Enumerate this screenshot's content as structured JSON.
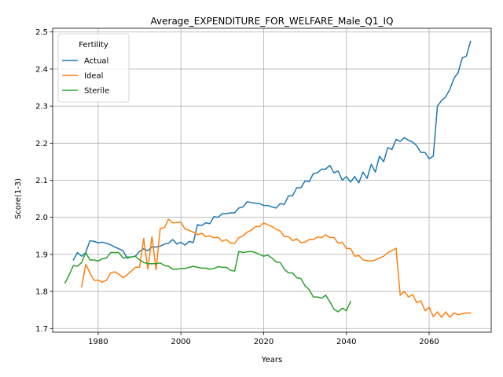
{
  "chart_data": {
    "type": "line",
    "title": "Average_EXPENDITURE_FOR_WELFARE_Male_Q1_IQ",
    "xlabel": "Years",
    "ylabel": "Score(1-3)",
    "xlim": [
      1969,
      2075
    ],
    "ylim": [
      1.69,
      2.51
    ],
    "xticks": [
      1980,
      2000,
      2020,
      2040,
      2060
    ],
    "yticks": [
      1.7,
      1.8,
      1.9,
      2.0,
      2.1,
      2.2,
      2.3,
      2.4,
      2.5
    ],
    "xtick_labels": [
      "1980",
      "2000",
      "2020",
      "2040",
      "2060"
    ],
    "ytick_labels": [
      "1.7",
      "1.8",
      "1.9",
      "2.0",
      "2.1",
      "2.2",
      "2.3",
      "2.4",
      "2.5"
    ],
    "grid": true,
    "legend": {
      "title": "Fertility",
      "position": "top-left"
    },
    "series": [
      {
        "name": "Actual",
        "color": "#1f77b4",
        "x": [
          1974,
          1975,
          1976,
          1977,
          1978,
          1979,
          1980,
          1981,
          1982,
          1983,
          1984,
          1985,
          1986,
          1987,
          1988,
          1989,
          1990,
          1991,
          1992,
          1993,
          1994,
          1995,
          1996,
          1997,
          1998,
          1999,
          2000,
          2001,
          2002,
          2003,
          2004,
          2005,
          2006,
          2007,
          2008,
          2009,
          2010,
          2011,
          2012,
          2013,
          2014,
          2015,
          2016,
          2017,
          2018,
          2019,
          2020,
          2021,
          2022,
          2023,
          2024,
          2025,
          2026,
          2027,
          2028,
          2029,
          2030,
          2031,
          2032,
          2033,
          2034,
          2035,
          2036,
          2037,
          2038,
          2039,
          2040,
          2041,
          2042,
          2043,
          2044,
          2045,
          2046,
          2047,
          2048,
          2049,
          2050,
          2051,
          2052,
          2053,
          2054,
          2055,
          2056,
          2057,
          2058,
          2059,
          2060,
          2061,
          2062,
          2063,
          2064,
          2065,
          2066,
          2067,
          2068,
          2069,
          2070
        ],
        "y": [
          1.885,
          1.905,
          1.895,
          1.905,
          1.937,
          1.935,
          1.931,
          1.933,
          1.93,
          1.926,
          1.92,
          1.915,
          1.91,
          1.89,
          1.893,
          1.895,
          1.908,
          1.915,
          1.91,
          1.92,
          1.92,
          1.922,
          1.928,
          1.93,
          1.94,
          1.928,
          1.933,
          1.925,
          1.935,
          1.932,
          1.98,
          1.978,
          1.985,
          1.983,
          2.002,
          2.0,
          2.01,
          2.01,
          2.012,
          2.012,
          2.025,
          2.028,
          2.042,
          2.04,
          2.038,
          2.037,
          2.032,
          2.032,
          2.028,
          2.025,
          2.037,
          2.035,
          2.058,
          2.058,
          2.08,
          2.08,
          2.098,
          2.096,
          2.118,
          2.12,
          2.13,
          2.13,
          2.14,
          2.12,
          2.125,
          2.1,
          2.11,
          2.095,
          2.11,
          2.093,
          2.122,
          2.105,
          2.143,
          2.122,
          2.165,
          2.15,
          2.188,
          2.183,
          2.21,
          2.205,
          2.215,
          2.208,
          2.203,
          2.193,
          2.175,
          2.175,
          2.158,
          2.165,
          2.3,
          2.315,
          2.325,
          2.345,
          2.375,
          2.39,
          2.43,
          2.435,
          2.475
        ]
      },
      {
        "name": "Ideal",
        "color": "#ff7f0e",
        "x": [
          1976,
          1977,
          1978,
          1979,
          1980,
          1981,
          1982,
          1983,
          1984,
          1985,
          1986,
          1987,
          1988,
          1989,
          1990,
          1991,
          1992,
          1993,
          1994,
          1995,
          1996,
          1997,
          1998,
          1999,
          2000,
          2001,
          2002,
          2003,
          2004,
          2005,
          2006,
          2007,
          2008,
          2009,
          2010,
          2011,
          2012,
          2013,
          2014,
          2015,
          2016,
          2017,
          2018,
          2019,
          2020,
          2021,
          2022,
          2023,
          2024,
          2025,
          2026,
          2027,
          2028,
          2029,
          2030,
          2031,
          2032,
          2033,
          2034,
          2035,
          2036,
          2037,
          2038,
          2039,
          2040,
          2041,
          2042,
          2043,
          2044,
          2045,
          2046,
          2047,
          2048,
          2049,
          2050,
          2051,
          2052,
          2053,
          2054,
          2055,
          2056,
          2057,
          2058,
          2059,
          2060,
          2061,
          2062,
          2063,
          2064,
          2065,
          2066,
          2067,
          2068,
          2069,
          2070
        ],
        "y": [
          1.812,
          1.873,
          1.85,
          1.83,
          1.83,
          1.825,
          1.83,
          1.85,
          1.853,
          1.847,
          1.837,
          1.845,
          1.855,
          1.865,
          1.865,
          1.943,
          1.86,
          1.948,
          1.858,
          1.97,
          1.972,
          1.995,
          1.985,
          1.986,
          1.987,
          1.968,
          1.965,
          1.96,
          1.953,
          1.957,
          1.948,
          1.95,
          1.945,
          1.946,
          1.935,
          1.94,
          1.93,
          1.93,
          1.945,
          1.95,
          1.96,
          1.965,
          1.975,
          1.975,
          1.985,
          1.98,
          1.975,
          1.968,
          1.963,
          1.948,
          1.948,
          1.937,
          1.942,
          1.932,
          1.933,
          1.94,
          1.94,
          1.947,
          1.945,
          1.953,
          1.945,
          1.946,
          1.93,
          1.933,
          1.916,
          1.916,
          1.895,
          1.897,
          1.885,
          1.883,
          1.882,
          1.885,
          1.89,
          1.895,
          1.905,
          1.91,
          1.917,
          1.79,
          1.8,
          1.785,
          1.792,
          1.77,
          1.775,
          1.748,
          1.757,
          1.732,
          1.745,
          1.73,
          1.745,
          1.73,
          1.742,
          1.737,
          1.74,
          1.742,
          1.742
        ]
      },
      {
        "name": "Sterile",
        "color": "#2ca02c",
        "x": [
          1972,
          1973,
          1974,
          1975,
          1976,
          1977,
          1978,
          1979,
          1980,
          1981,
          1982,
          1983,
          1984,
          1985,
          1986,
          1987,
          1988,
          1989,
          1990,
          1991,
          1992,
          1993,
          1994,
          1995,
          1996,
          1997,
          1998,
          1999,
          2000,
          2001,
          2002,
          2003,
          2004,
          2005,
          2006,
          2007,
          2008,
          2009,
          2010,
          2011,
          2012,
          2013,
          2014,
          2015,
          2016,
          2017,
          2018,
          2019,
          2020,
          2021,
          2022,
          2023,
          2024,
          2025,
          2026,
          2027,
          2028,
          2029,
          2030,
          2031,
          2032,
          2033,
          2034,
          2035,
          2036,
          2037,
          2038,
          2039,
          2040,
          2041
        ],
        "y": [
          1.823,
          1.845,
          1.87,
          1.868,
          1.878,
          1.905,
          1.885,
          1.885,
          1.882,
          1.888,
          1.89,
          1.905,
          1.905,
          1.905,
          1.89,
          1.893,
          1.893,
          1.895,
          1.885,
          1.878,
          1.875,
          1.875,
          1.875,
          1.877,
          1.87,
          1.868,
          1.86,
          1.86,
          1.862,
          1.862,
          1.865,
          1.868,
          1.865,
          1.863,
          1.863,
          1.86,
          1.862,
          1.867,
          1.865,
          1.865,
          1.857,
          1.855,
          1.908,
          1.905,
          1.907,
          1.908,
          1.905,
          1.9,
          1.895,
          1.898,
          1.89,
          1.88,
          1.878,
          1.86,
          1.85,
          1.85,
          1.837,
          1.835,
          1.815,
          1.805,
          1.785,
          1.785,
          1.782,
          1.79,
          1.772,
          1.752,
          1.745,
          1.755,
          1.748,
          1.773
        ]
      }
    ]
  }
}
